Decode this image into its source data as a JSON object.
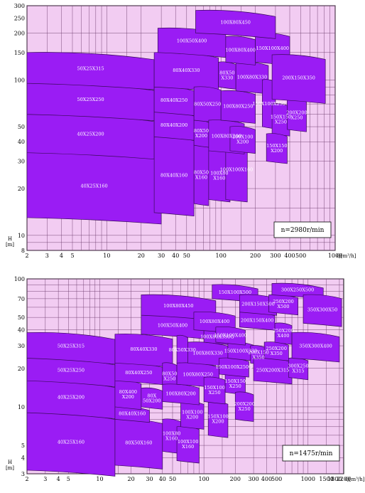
{
  "colors": {
    "plot_bg": "#f2ccf2",
    "grid": "#6b3a6b",
    "region_fill": "#9a1cf4",
    "region_stroke": "#3a0a5a",
    "label_text": "#ffffff"
  },
  "chart_data": [
    {
      "type": "area",
      "title": "",
      "xscale": "log",
      "yscale": "log",
      "xlim": [
        2,
        1000
      ],
      "ylim": [
        8,
        300
      ],
      "xlabel": "Q[m³/h]",
      "ylabel": "H [m]",
      "x_ticks": [
        "2",
        "3",
        "4",
        "5",
        "10",
        "20",
        "30",
        "40",
        "50",
        "100",
        "200",
        "300",
        "400",
        "500",
        "1000"
      ],
      "x_tick_values": [
        2,
        3,
        4,
        5,
        10,
        20,
        30,
        40,
        50,
        100,
        200,
        300,
        400,
        500,
        1000
      ],
      "y_ticks": [
        "8",
        "10",
        "20",
        "30",
        "40",
        "50",
        "100",
        "150",
        "200",
        "250",
        "300"
      ],
      "y_tick_values": [
        8,
        10,
        20,
        30,
        40,
        50,
        100,
        150,
        200,
        250,
        300
      ],
      "speed": "n=2980r/min",
      "regions": [
        {
          "label": "40X25X160",
          "q": [
            2,
            30
          ],
          "h": [
            13,
            34
          ]
        },
        {
          "label": "40X25X200",
          "q": [
            2,
            26
          ],
          "h": [
            34,
            60
          ]
        },
        {
          "label": "50X25X250",
          "q": [
            2,
            26
          ],
          "h": [
            60,
            95
          ]
        },
        {
          "label": "50X25X315",
          "q": [
            2,
            26
          ],
          "h": [
            95,
            150
          ]
        },
        {
          "label": "80X40X160",
          "q": [
            26,
            58
          ],
          "h": [
            14,
            43
          ]
        },
        {
          "label": "80X40X200",
          "q": [
            26,
            58
          ],
          "h": [
            43,
            62
          ]
        },
        {
          "label": "80X40X250",
          "q": [
            26,
            58
          ],
          "h": [
            62,
            90
          ]
        },
        {
          "label": "80X40X330",
          "q": [
            26,
            95
          ],
          "h": [
            90,
            150
          ]
        },
        {
          "label": "80X50 X160",
          "q": [
            58,
            78
          ],
          "h": [
            16,
            38
          ]
        },
        {
          "label": "80X50 X200",
          "q": [
            58,
            78
          ],
          "h": [
            38,
            55
          ]
        },
        {
          "label": "80X50X250",
          "q": [
            58,
            100
          ],
          "h": [
            55,
            90
          ]
        },
        {
          "label": "80X50 X330",
          "q": [
            95,
            135
          ],
          "h": [
            90,
            130
          ]
        },
        {
          "label": "100X80 X160",
          "q": [
            78,
            120
          ],
          "h": [
            17,
            35
          ]
        },
        {
          "label": "100X100X160",
          "q": [
            110,
            170
          ],
          "h": [
            17,
            42
          ]
        },
        {
          "label": "100X80X200",
          "q": [
            78,
            160
          ],
          "h": [
            35,
            55
          ]
        },
        {
          "label": "100X100 X200",
          "q": [
            120,
            200
          ],
          "h": [
            35,
            50
          ]
        },
        {
          "label": "100X80X250",
          "q": [
            100,
            200
          ],
          "h": [
            55,
            85
          ]
        },
        {
          "label": "100X80X330",
          "q": [
            135,
            260
          ],
          "h": [
            85,
            130
          ]
        },
        {
          "label": "100X50X400",
          "q": [
            28,
            110
          ],
          "h": [
            150,
            215
          ]
        },
        {
          "label": "100X80X400",
          "q": [
            110,
            200
          ],
          "h": [
            130,
            190
          ]
        },
        {
          "label": "150X100X400",
          "q": [
            200,
            400
          ],
          "h": [
            130,
            200
          ]
        },
        {
          "label": "100X80X450",
          "q": [
            60,
            300
          ],
          "h": [
            200,
            280
          ]
        },
        {
          "label": "150X100X250",
          "q": [
            230,
            300
          ],
          "h": [
            50,
            100
          ]
        },
        {
          "label": "150X150 X250",
          "q": [
            280,
            400
          ],
          "h": [
            45,
            70
          ]
        },
        {
          "label": "150X150 X200",
          "q": [
            250,
            380
          ],
          "h": [
            30,
            45
          ]
        },
        {
          "label": "200X200 X250",
          "q": [
            380,
            560
          ],
          "h": [
            48,
            75
          ]
        },
        {
          "label": "200X150X350",
          "q": [
            280,
            820
          ],
          "h": [
            75,
            145
          ]
        }
      ]
    },
    {
      "type": "area",
      "title": "",
      "xscale": "log",
      "yscale": "log",
      "xlim": [
        2,
        2200
      ],
      "ylim": [
        3,
        100
      ],
      "xlabel": "Q[m³/h]",
      "ylabel": "H [m]",
      "x_ticks": [
        "2",
        "3",
        "4",
        "5",
        "10",
        "20",
        "30",
        "40",
        "50",
        "100",
        "200",
        "300",
        "400",
        "500",
        "1000",
        "1500",
        "1800",
        "2200"
      ],
      "x_tick_values": [
        2,
        3,
        4,
        5,
        10,
        20,
        30,
        40,
        50,
        100,
        200,
        300,
        400,
        500,
        1000,
        1500,
        1800,
        2200
      ],
      "y_ticks": [
        "3",
        "4",
        "5",
        "10",
        "20",
        "30",
        "40",
        "50",
        "70",
        "100"
      ],
      "y_tick_values": [
        3,
        4,
        5,
        10,
        20,
        30,
        40,
        50,
        70,
        100
      ],
      "speed": "n=1475r/min",
      "regions": [
        {
          "label": "40X25X160",
          "q": [
            2,
            14
          ],
          "h": [
            3.2,
            9
          ]
        },
        {
          "label": "40X25X200",
          "q": [
            2,
            14
          ],
          "h": [
            9,
            16
          ]
        },
        {
          "label": "50X25X250",
          "q": [
            2,
            14
          ],
          "h": [
            16,
            24
          ]
        },
        {
          "label": "50X25X315",
          "q": [
            2,
            14
          ],
          "h": [
            24,
            38
          ]
        },
        {
          "label": "80X50X160",
          "q": [
            14,
            40
          ],
          "h": [
            3.5,
            8
          ]
        },
        {
          "label": "80X40X160",
          "q": [
            14,
            30
          ],
          "h": [
            8,
            10
          ]
        },
        {
          "label": "80X400 X200",
          "q": [
            14,
            25
          ],
          "h": [
            10,
            16
          ]
        },
        {
          "label": "80X40X250",
          "q": [
            14,
            40
          ],
          "h": [
            16,
            22
          ]
        },
        {
          "label": "80X40X330",
          "q": [
            14,
            50
          ],
          "h": [
            22,
            37
          ]
        },
        {
          "label": "100X50X400",
          "q": [
            25,
            100
          ],
          "h": [
            37,
            52
          ]
        },
        {
          "label": "100X80X450",
          "q": [
            25,
            130
          ],
          "h": [
            52,
            75
          ]
        },
        {
          "label": "80X 50X200",
          "q": [
            25,
            40
          ],
          "h": [
            10,
            14
          ]
        },
        {
          "label": "80X50 X250",
          "q": [
            40,
            55
          ],
          "h": [
            14,
            22
          ]
        },
        {
          "label": "80X50X330",
          "q": [
            55,
            70
          ],
          "h": [
            22,
            36
          ]
        },
        {
          "label": "100X80 X160",
          "q": [
            40,
            60
          ],
          "h": [
            4.5,
            8
          ]
        },
        {
          "label": "100X100 X160",
          "q": [
            55,
            90
          ],
          "h": [
            3.8,
            7
          ]
        },
        {
          "label": "100X100 X200",
          "q": [
            60,
            100
          ],
          "h": [
            7,
            11
          ]
        },
        {
          "label": "100X80X200",
          "q": [
            40,
            90
          ],
          "h": [
            11,
            15
          ]
        },
        {
          "label": "100X80X250",
          "q": [
            55,
            140
          ],
          "h": [
            15,
            22
          ]
        },
        {
          "label": "100X80X330",
          "q": [
            70,
            170
          ],
          "h": [
            22,
            32
          ]
        },
        {
          "label": "100X80X330G",
          "q": [
            100,
            180
          ],
          "h": [
            32,
            40
          ]
        },
        {
          "label": "100X80X400",
          "q": [
            80,
            200
          ],
          "h": [
            40,
            55
          ]
        },
        {
          "label": "150X100X500",
          "q": [
            120,
            330
          ],
          "h": [
            70,
            90
          ]
        },
        {
          "label": "150X100 X200",
          "q": [
            110,
            170
          ],
          "h": [
            6,
            11
          ]
        },
        {
          "label": "150X100 X250",
          "q": [
            100,
            160
          ],
          "h": [
            11,
            17
          ]
        },
        {
          "label": "150X150 X250",
          "q": [
            160,
            250
          ],
          "h": [
            13,
            18
          ]
        },
        {
          "label": "150X100X250G",
          "q": [
            140,
            270
          ],
          "h": [
            18,
            24
          ]
        },
        {
          "label": "150X100X330",
          "q": [
            170,
            300
          ],
          "h": [
            24,
            32
          ]
        },
        {
          "label": "150X100X400",
          "q": [
            130,
            250
          ],
          "h": [
            32,
            42
          ]
        },
        {
          "label": "200X150X400",
          "q": [
            220,
            480
          ],
          "h": [
            42,
            55
          ]
        },
        {
          "label": "200X150X500",
          "q": [
            220,
            500
          ],
          "h": [
            55,
            75
          ]
        },
        {
          "label": "200X200 X250",
          "q": [
            200,
            300
          ],
          "h": [
            8,
            13
          ]
        },
        {
          "label": "200X150 X350",
          "q": [
            280,
            400
          ],
          "h": [
            22,
            30
          ]
        },
        {
          "label": "250X200X315",
          "q": [
            300,
            700
          ],
          "h": [
            16,
            24
          ]
        },
        {
          "label": "250X200 X350",
          "q": [
            380,
            650
          ],
          "h": [
            24,
            32
          ]
        },
        {
          "label": "250X200 X400",
          "q": [
            480,
            700
          ],
          "h": [
            32,
            45
          ]
        },
        {
          "label": "250X200 X500",
          "q": [
            420,
            800
          ],
          "h": [
            55,
            75
          ]
        },
        {
          "label": "300X250 X315",
          "q": [
            650,
            1000
          ],
          "h": [
            17,
            24
          ]
        },
        {
          "label": "350X300X400",
          "q": [
            700,
            2000
          ],
          "h": [
            24,
            38
          ]
        },
        {
          "label": "300X250X500",
          "q": [
            450,
            1400
          ],
          "h": [
            75,
            92
          ]
        },
        {
          "label": "350X300X50",
          "q": [
            900,
            2100
          ],
          "h": [
            45,
            75
          ]
        }
      ]
    }
  ]
}
